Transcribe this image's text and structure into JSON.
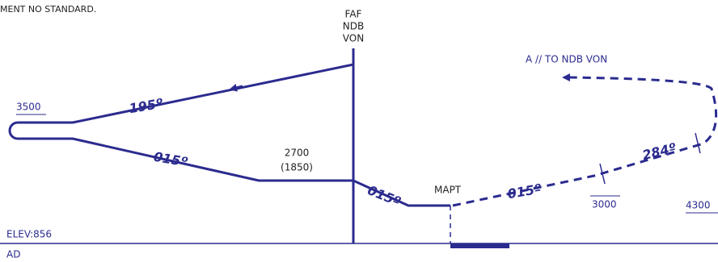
{
  "header": {
    "note": "MENT NO STANDARD."
  },
  "fix": {
    "lines": [
      "FAF",
      "NDB",
      "VON"
    ]
  },
  "missed_approach": {
    "label": "A // TO NDB VON",
    "course": "284º",
    "alt_1": "3000",
    "alt_2": "4300",
    "mapt": "MAPT",
    "course_2": "015º"
  },
  "procedure": {
    "altitude": "3500",
    "outbound": "195º",
    "inbound": "015º",
    "final_alt": "2700",
    "final_height": "(1850)",
    "final_course": "015º"
  },
  "aerodrome": {
    "elevation": "ELEV:856",
    "label": "AD"
  }
}
